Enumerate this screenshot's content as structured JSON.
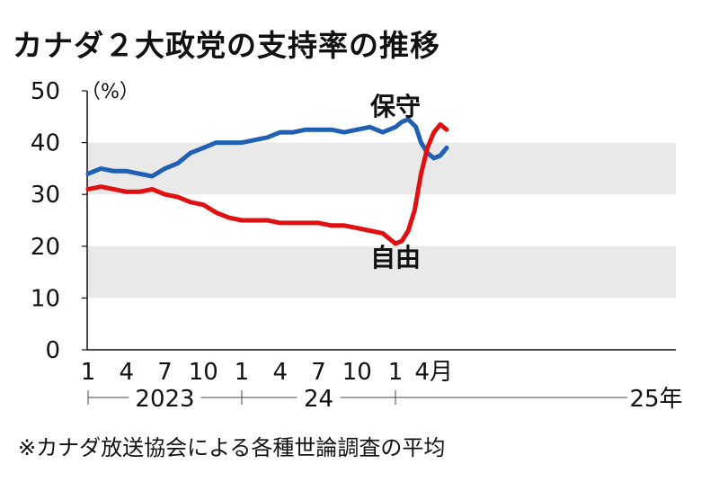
{
  "title": "カナダ２大政党の支持率の推移",
  "note": "※カナダ放送協会による各種世論調査の平均",
  "chart_data": {
    "type": "line",
    "title": "カナダ２大政党の支持率の推移",
    "unit_label": "（%）",
    "ylim": [
      0,
      50
    ],
    "y_ticks": [
      0,
      10,
      20,
      30,
      40,
      50
    ],
    "x_range_months": [
      0,
      28
    ],
    "x_ticks": [
      {
        "m": 0,
        "label": "1"
      },
      {
        "m": 3,
        "label": "4"
      },
      {
        "m": 6,
        "label": "7"
      },
      {
        "m": 9,
        "label": "10"
      },
      {
        "m": 12,
        "label": "1"
      },
      {
        "m": 15,
        "label": "4"
      },
      {
        "m": 18,
        "label": "7"
      },
      {
        "m": 21,
        "label": "10"
      },
      {
        "m": 24,
        "label": "1"
      },
      {
        "m": 27,
        "label": "4月"
      }
    ],
    "year_labels": [
      {
        "label": "2023",
        "from": 0,
        "to": 12
      },
      {
        "label": "24",
        "from": 12,
        "to": 24
      },
      {
        "label": "25年",
        "from": 24,
        "to": 28
      }
    ],
    "grid": "alternating horizontal bands",
    "series": [
      {
        "name": "保守",
        "color": "#1f5fb4",
        "points": [
          [
            0,
            34
          ],
          [
            1,
            35
          ],
          [
            2,
            34.5
          ],
          [
            3,
            34.5
          ],
          [
            4,
            34
          ],
          [
            5,
            33.5
          ],
          [
            6,
            35
          ],
          [
            7,
            36
          ],
          [
            8,
            38
          ],
          [
            9,
            39
          ],
          [
            10,
            40
          ],
          [
            11,
            40
          ],
          [
            12,
            40
          ],
          [
            13,
            40.5
          ],
          [
            14,
            41
          ],
          [
            15,
            42
          ],
          [
            16,
            42
          ],
          [
            17,
            42.5
          ],
          [
            18,
            42.5
          ],
          [
            19,
            42.5
          ],
          [
            20,
            42
          ],
          [
            21,
            42.5
          ],
          [
            22,
            43
          ],
          [
            23,
            42
          ],
          [
            24,
            43
          ],
          [
            24.5,
            44
          ],
          [
            25,
            44.5
          ],
          [
            25.6,
            43
          ],
          [
            26,
            40
          ],
          [
            26.5,
            38
          ],
          [
            27,
            37
          ],
          [
            27.5,
            37.5
          ],
          [
            28,
            39
          ]
        ]
      },
      {
        "name": "自由",
        "color": "#e01010",
        "points": [
          [
            0,
            31
          ],
          [
            1,
            31.5
          ],
          [
            2,
            31
          ],
          [
            3,
            30.5
          ],
          [
            4,
            30.5
          ],
          [
            5,
            31
          ],
          [
            6,
            30
          ],
          [
            7,
            29.5
          ],
          [
            8,
            28.5
          ],
          [
            9,
            28
          ],
          [
            10,
            26.5
          ],
          [
            11,
            25.5
          ],
          [
            12,
            25
          ],
          [
            13,
            25
          ],
          [
            14,
            25
          ],
          [
            15,
            24.5
          ],
          [
            16,
            24.5
          ],
          [
            17,
            24.5
          ],
          [
            18,
            24.5
          ],
          [
            19,
            24
          ],
          [
            20,
            24
          ],
          [
            21,
            23.5
          ],
          [
            22,
            23
          ],
          [
            23,
            22.5
          ],
          [
            24,
            20.5
          ],
          [
            24.5,
            21
          ],
          [
            25,
            23
          ],
          [
            25.5,
            27
          ],
          [
            26,
            34
          ],
          [
            26.5,
            39
          ],
          [
            27,
            42
          ],
          [
            27.5,
            43.5
          ],
          [
            28,
            42.5
          ]
        ]
      }
    ]
  }
}
